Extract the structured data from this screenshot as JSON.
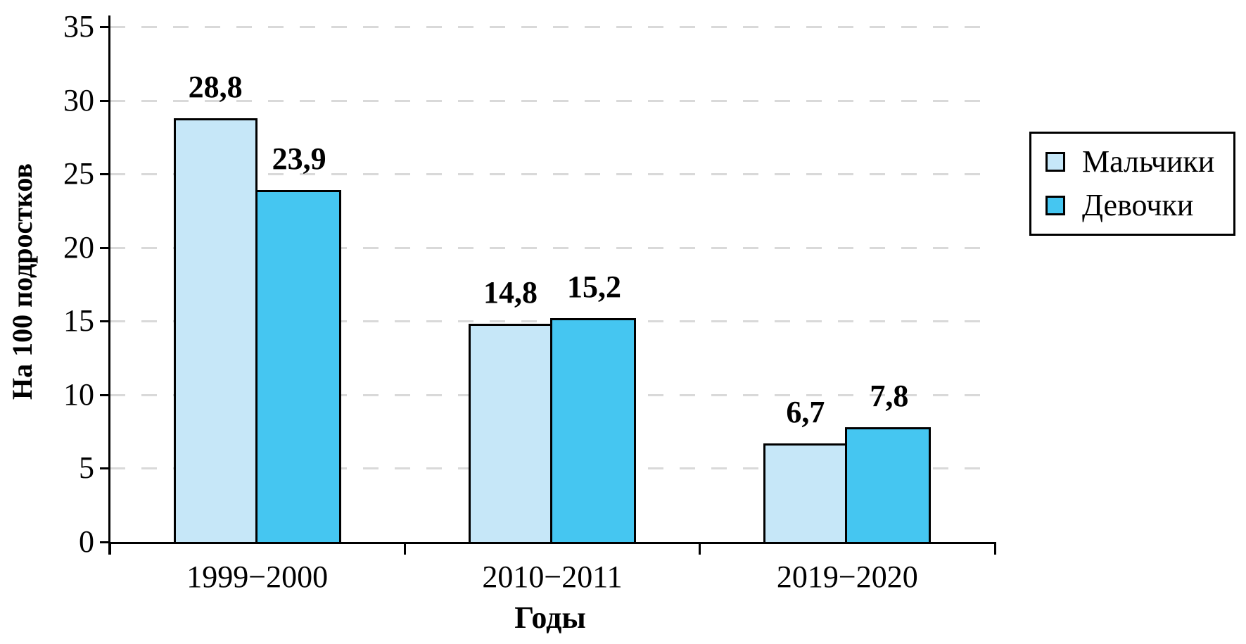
{
  "chart_data": {
    "type": "bar",
    "title": "",
    "xlabel": "Годы",
    "ylabel": "На 100 подростков",
    "categories": [
      "1999−2000",
      "2010−2011",
      "2019−2020"
    ],
    "series": [
      {
        "name": "Мальчики",
        "color": "#c6e7f8",
        "values": [
          28.8,
          14.8,
          6.7
        ],
        "value_labels": [
          "28,8",
          "14,8",
          "6,7"
        ]
      },
      {
        "name": "Девочки",
        "color": "#45c6f1",
        "values": [
          23.9,
          15.2,
          7.8
        ],
        "value_labels": [
          "23,9",
          "15,2",
          "7,8"
        ]
      }
    ],
    "ylim": [
      0,
      35
    ],
    "ytick_step": 5,
    "ytick_labels": [
      "0",
      "5",
      "10",
      "15",
      "20",
      "25",
      "30",
      "35"
    ],
    "grid": {
      "horizontal": true,
      "style": "dashed",
      "color": "#d9d9d9"
    },
    "legend": {
      "position": "top-right",
      "entries": [
        "Мальчики",
        "Девочки"
      ]
    },
    "colors": {
      "axis": "#000000",
      "bar_border": "#000000",
      "background": "#ffffff",
      "text": "#000000"
    }
  }
}
